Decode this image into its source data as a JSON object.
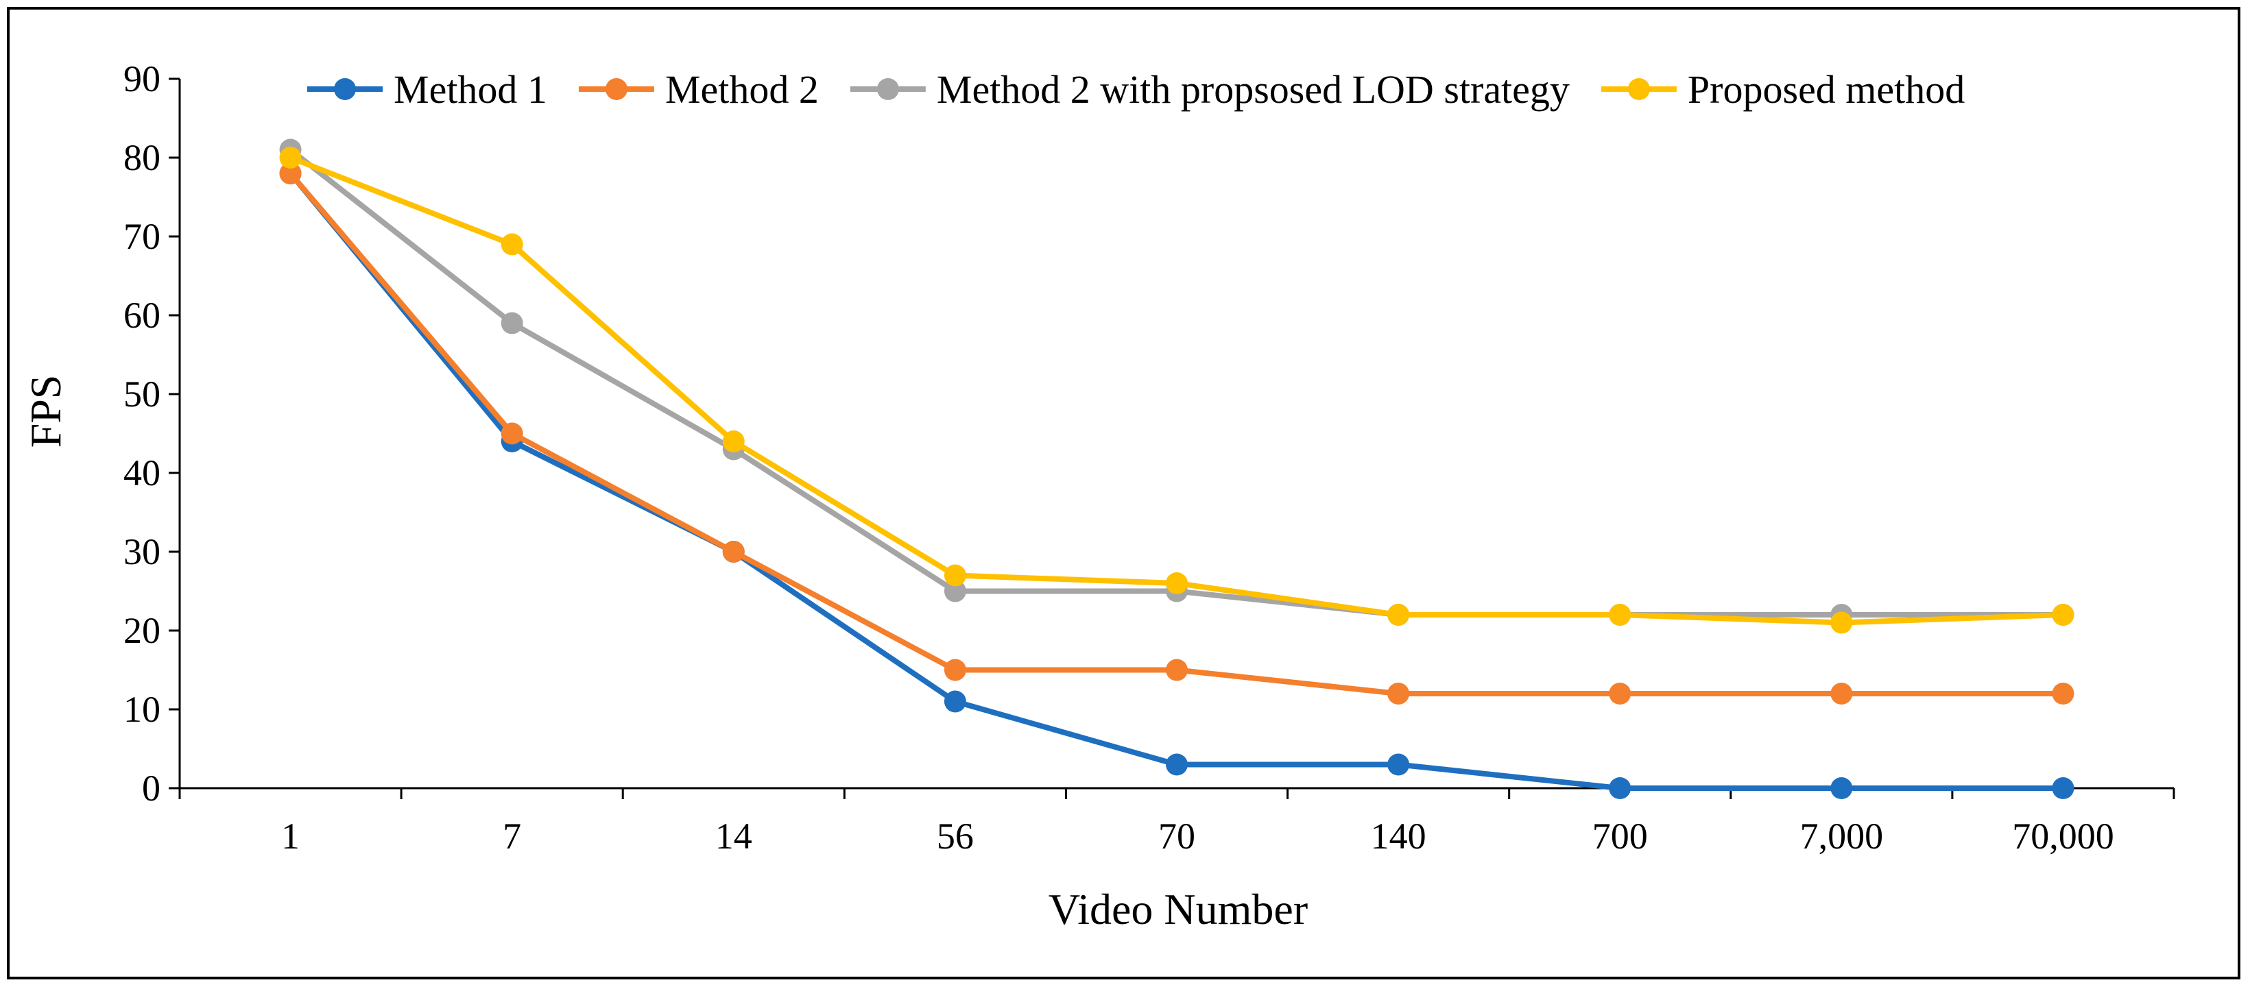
{
  "chart_data": {
    "type": "line",
    "title": "",
    "xlabel": "Video Number",
    "ylabel": "FPS",
    "categories": [
      "1",
      "7",
      "14",
      "56",
      "70",
      "140",
      "700",
      "7,000",
      "70,000"
    ],
    "ylim": [
      0,
      90
    ],
    "yticks": [
      0,
      10,
      20,
      30,
      40,
      50,
      60,
      70,
      80,
      90
    ],
    "grid": false,
    "legend_position": "top",
    "series": [
      {
        "name": "Method 1",
        "color": "#1F6FC0",
        "values": [
          78,
          44,
          30,
          11,
          3,
          3,
          0,
          0,
          0
        ]
      },
      {
        "name": "Method 2",
        "color": "#F47F2C",
        "values": [
          78,
          45,
          30,
          15,
          15,
          12,
          12,
          12,
          12
        ]
      },
      {
        "name": "Method 2 with propsosed LOD strategy",
        "color": "#A5A5A5",
        "values": [
          81,
          59,
          43,
          25,
          25,
          22,
          22,
          22,
          22
        ]
      },
      {
        "name": "Proposed method",
        "color": "#FFC000",
        "values": [
          80,
          69,
          44,
          27,
          26,
          22,
          22,
          21,
          22
        ]
      }
    ]
  }
}
